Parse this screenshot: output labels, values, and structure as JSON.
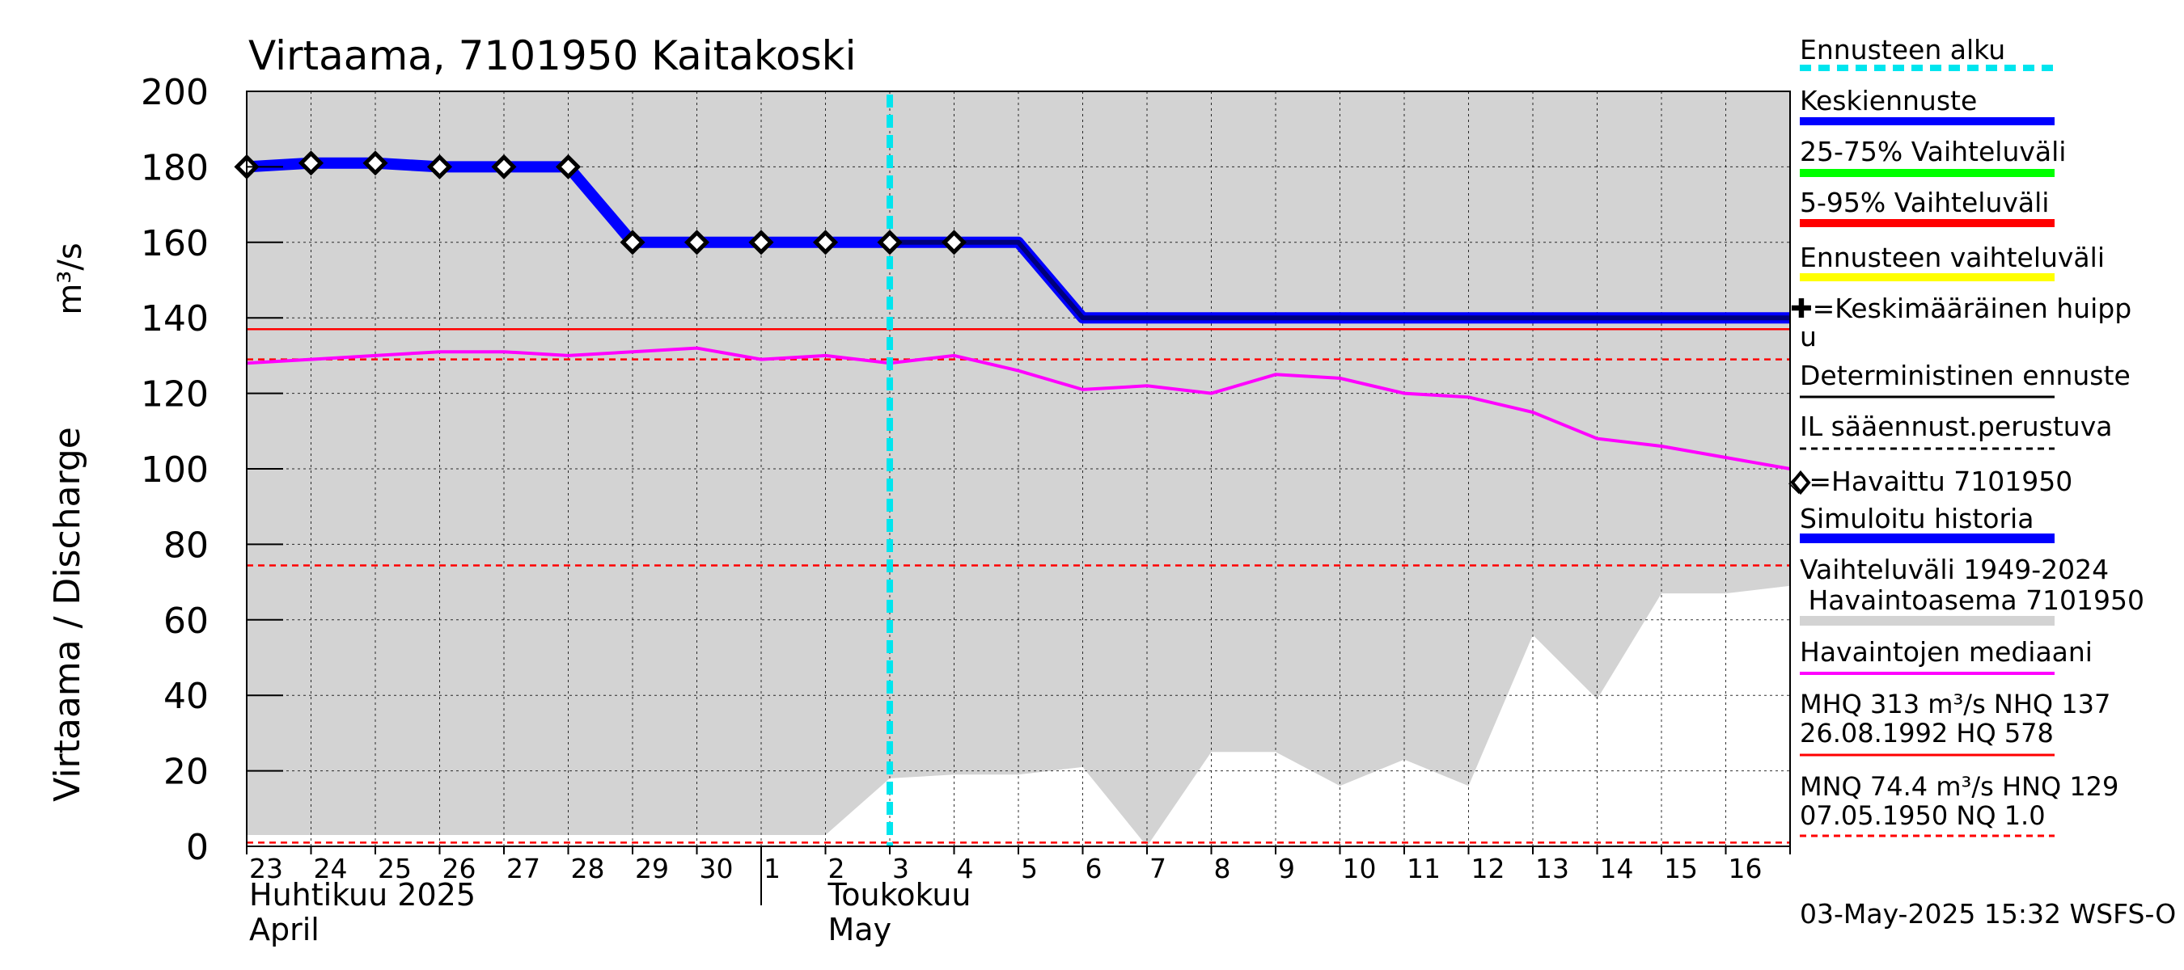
{
  "chart_data": {
    "type": "line",
    "title": "Virtaama, 7101950 Kaitakoski",
    "ylabel_left": "Virtaama / Discharge",
    "ylabel_right": "m³/s",
    "ylim": [
      0,
      200
    ],
    "yticks": [
      0,
      20,
      40,
      60,
      80,
      100,
      120,
      140,
      160,
      180,
      200
    ],
    "xlim": [
      0,
      24
    ],
    "day_labels": [
      "23",
      "24",
      "25",
      "26",
      "27",
      "28",
      "29",
      "30",
      "1",
      "2",
      "3",
      "4",
      "5",
      "6",
      "7",
      "8",
      "9",
      "10",
      "11",
      "12",
      "13",
      "14",
      "15",
      "16"
    ],
    "month_labels": [
      {
        "x": 0,
        "line1": "Huhtikuu  2025",
        "line2": "April"
      },
      {
        "x": 9,
        "line1": "Toukokuu",
        "line2": "May"
      }
    ],
    "month_divider_x": 8,
    "forecast_start_x": 10,
    "history_range_upper": [
      [
        0,
        200
      ],
      [
        24,
        200
      ]
    ],
    "history_range_lower": [
      [
        0,
        3
      ],
      [
        9,
        3
      ],
      [
        10,
        18
      ],
      [
        11,
        19
      ],
      [
        12,
        19
      ],
      [
        13,
        21
      ],
      [
        14,
        0
      ],
      [
        15,
        25
      ],
      [
        16,
        25
      ],
      [
        17,
        16
      ],
      [
        18,
        23
      ],
      [
        19,
        16
      ],
      [
        20,
        56
      ],
      [
        21,
        39
      ],
      [
        22,
        67
      ],
      [
        23,
        67
      ],
      [
        24,
        69
      ]
    ],
    "simulated_history": [
      [
        0,
        180
      ],
      [
        1,
        181
      ],
      [
        2,
        181
      ],
      [
        3,
        180
      ],
      [
        4,
        180
      ],
      [
        5,
        180
      ],
      [
        6,
        160
      ],
      [
        7,
        160
      ],
      [
        8,
        160
      ],
      [
        9,
        160
      ],
      [
        10,
        160
      ],
      [
        11,
        160
      ],
      [
        12,
        160
      ],
      [
        13,
        140
      ],
      [
        24,
        140
      ]
    ],
    "mean_forecast": [
      [
        10,
        160
      ],
      [
        11,
        160
      ],
      [
        12,
        160
      ],
      [
        13,
        140
      ],
      [
        24,
        140
      ]
    ],
    "observed": [
      [
        0,
        180
      ],
      [
        1,
        181
      ],
      [
        2,
        181
      ],
      [
        3,
        180
      ],
      [
        4,
        180
      ],
      [
        5,
        180
      ],
      [
        6,
        160
      ],
      [
        7,
        160
      ],
      [
        8,
        160
      ],
      [
        9,
        160
      ],
      [
        10,
        160
      ],
      [
        11,
        160
      ]
    ],
    "median": [
      [
        0,
        128
      ],
      [
        1,
        129
      ],
      [
        2,
        130
      ],
      [
        3,
        131
      ],
      [
        4,
        131
      ],
      [
        5,
        130
      ],
      [
        6,
        131
      ],
      [
        7,
        132
      ],
      [
        8,
        129
      ],
      [
        9,
        130
      ],
      [
        10,
        128
      ],
      [
        11,
        130
      ],
      [
        12,
        126
      ],
      [
        13,
        121
      ],
      [
        14,
        122
      ],
      [
        15,
        120
      ],
      [
        16,
        125
      ],
      [
        17,
        124
      ],
      [
        18,
        120
      ],
      [
        19,
        119
      ],
      [
        20,
        115
      ],
      [
        21,
        108
      ],
      [
        22,
        106
      ],
      [
        23,
        103
      ],
      [
        24,
        100
      ]
    ],
    "hlines": {
      "NHQ": 137,
      "HNQ": 129,
      "MNQ": 74.4,
      "NQ": 1.0
    }
  },
  "colors": {
    "grey_range": "#d3d3d3",
    "simulated": "#0000ff",
    "mean_forecast": "#00007a",
    "median": "#ff00ff",
    "ref_line": "#ff0000",
    "forecast_start": "#00e5ee",
    "range_25_75": "#00ff00",
    "range_5_95": "#ff0000",
    "forecast_range": "#ffff00"
  },
  "legend": {
    "forecast_start": "Ennusteen alku",
    "mean_forecast": "Keskiennuste",
    "range_25_75": "25-75% Vaihteluväli",
    "range_5_95": "5-95% Vaihteluväli",
    "forecast_range": "Ennusteen vaihteluväli",
    "mean_peak_line1": "✚=Keskimääräinen huipp",
    "mean_peak_line2": "u",
    "deterministic": "Deterministinen ennuste",
    "il_based": "IL sääennust.perustuva",
    "observed": "◇=Havaittu 7101950",
    "simulated": "Simuloitu historia",
    "range_hist_line1": "Vaihteluväli 1949-2024",
    "range_hist_line2": " Havaintoasema 7101950",
    "median": "Havaintojen mediaani",
    "mhq_line1": "MHQ  313 m³/s NHQ  137",
    "mhq_line2": "26.08.1992 HQ  578",
    "mnq_line1": "MNQ 74.4 m³/s HNQ  129",
    "mnq_line2": "07.05.1950 NQ  1.0"
  },
  "footer": "03-May-2025 15:32 WSFS-O"
}
